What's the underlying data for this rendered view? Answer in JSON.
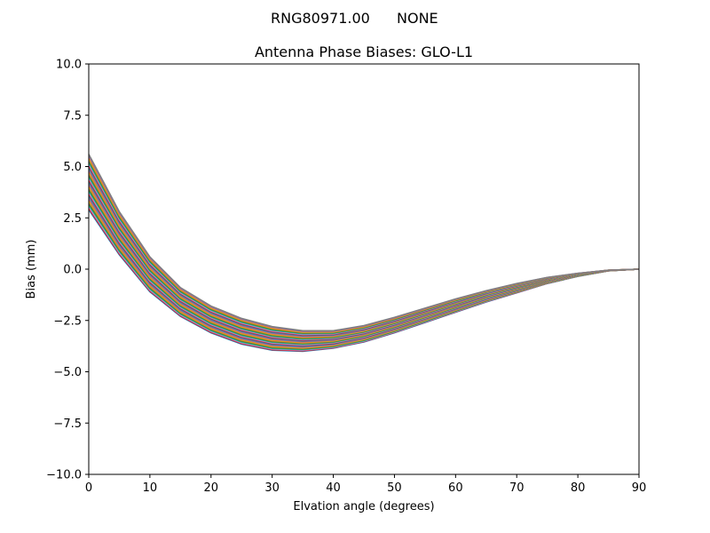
{
  "figure": {
    "suptitle_left": "RNG80971.00",
    "suptitle_right": "NONE"
  },
  "chart_data": {
    "type": "line",
    "title": "Antenna Phase Biases: GLO-L1",
    "xlabel": "Elvation angle (degrees)",
    "ylabel": "Bias (mm)",
    "xlim": [
      0,
      90
    ],
    "ylim": [
      -10,
      10
    ],
    "xticks": [
      0,
      10,
      20,
      30,
      40,
      50,
      60,
      70,
      80,
      90
    ],
    "xtick_labels": [
      "0",
      "10",
      "20",
      "30",
      "40",
      "50",
      "60",
      "70",
      "80",
      "90"
    ],
    "yticks": [
      -10,
      -7.5,
      -5,
      -2.5,
      0,
      2.5,
      5,
      7.5,
      10
    ],
    "ytick_labels": [
      "−10.0",
      "−7.5",
      "−5.0",
      "−2.5",
      "0.0",
      "2.5",
      "5.0",
      "7.5",
      "10.0"
    ],
    "grid": false,
    "x": [
      0,
      5,
      10,
      15,
      20,
      25,
      30,
      35,
      40,
      45,
      50,
      55,
      60,
      65,
      70,
      75,
      80,
      85,
      90
    ],
    "envelope_upper": [
      5.6,
      2.8,
      0.6,
      -0.9,
      -1.8,
      -2.4,
      -2.8,
      -3.0,
      -3.0,
      -2.75,
      -2.35,
      -1.9,
      -1.45,
      -1.05,
      -0.7,
      -0.4,
      -0.2,
      -0.05,
      0.0
    ],
    "envelope_lower": [
      2.9,
      0.7,
      -1.1,
      -2.3,
      -3.1,
      -3.65,
      -3.95,
      -4.0,
      -3.85,
      -3.55,
      -3.1,
      -2.6,
      -2.1,
      -1.6,
      -1.15,
      -0.7,
      -0.35,
      -0.08,
      0.0
    ],
    "series_count": 40,
    "colors": [
      "#1f77b4",
      "#ff7f0e",
      "#2ca02c",
      "#d62728",
      "#9467bd",
      "#8c564b",
      "#e377c2",
      "#7f7f7f",
      "#bcbd22",
      "#17becf"
    ]
  }
}
